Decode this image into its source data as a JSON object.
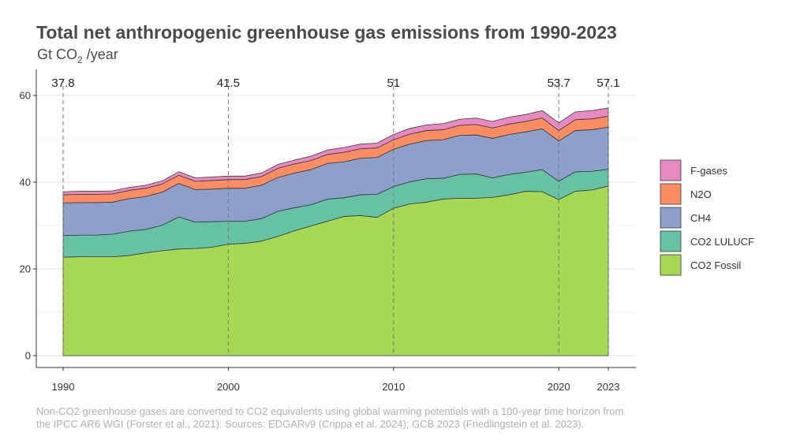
{
  "chart_data": {
    "type": "area",
    "stacked": true,
    "title": "Total net anthropogenic greenhouse gas emissions from 1990-2023",
    "subtitle_prefix": "Gt CO",
    "subtitle_sub": "2",
    "subtitle_suffix": " /year",
    "ylim": [
      0,
      65
    ],
    "xlim": [
      1990,
      2023
    ],
    "y_ticks": [
      0,
      20,
      40,
      60
    ],
    "x_ticks": [
      1990,
      2000,
      2010,
      2020,
      2023
    ],
    "grid": true,
    "legend_position": "right",
    "x": [
      1990,
      1991,
      1992,
      1993,
      1994,
      1995,
      1996,
      1997,
      1998,
      1999,
      2000,
      2001,
      2002,
      2003,
      2004,
      2005,
      2006,
      2007,
      2008,
      2009,
      2010,
      2011,
      2012,
      2013,
      2014,
      2015,
      2016,
      2017,
      2018,
      2019,
      2020,
      2021,
      2022,
      2023
    ],
    "series": [
      {
        "name": "CO2 Fossil",
        "color": "#a6d854",
        "values": [
          22.7,
          22.8,
          22.8,
          22.8,
          23.1,
          23.7,
          24.2,
          24.6,
          24.7,
          25.0,
          25.7,
          25.9,
          26.4,
          27.5,
          28.8,
          29.9,
          31.0,
          32.1,
          32.3,
          31.9,
          34.0,
          35.0,
          35.4,
          36.1,
          36.3,
          36.3,
          36.5,
          37.1,
          37.9,
          37.8,
          36.0,
          37.9,
          38.2,
          39.1
        ]
      },
      {
        "name": "CO2 LULUCF",
        "color": "#66c2a5",
        "values": [
          5.0,
          5.0,
          5.0,
          5.2,
          5.6,
          5.4,
          5.9,
          7.4,
          6.1,
          5.9,
          5.3,
          5.1,
          5.2,
          5.8,
          5.3,
          4.9,
          5.1,
          4.3,
          4.8,
          5.3,
          5.0,
          5.1,
          5.4,
          4.8,
          5.5,
          5.6,
          4.5,
          4.7,
          4.4,
          5.1,
          4.2,
          4.5,
          4.3,
          3.9
        ]
      },
      {
        "name": "CH4",
        "color": "#8da0cb",
        "values": [
          7.5,
          7.5,
          7.5,
          7.4,
          7.5,
          7.6,
          7.6,
          7.7,
          7.5,
          7.5,
          7.6,
          7.6,
          7.7,
          7.8,
          8.0,
          8.1,
          8.2,
          8.3,
          8.4,
          8.5,
          8.6,
          8.7,
          8.8,
          8.9,
          9.0,
          9.0,
          9.1,
          9.2,
          9.3,
          9.4,
          9.3,
          9.5,
          9.6,
          9.7
        ]
      },
      {
        "name": "N2O",
        "color": "#fc8d62",
        "values": [
          1.9,
          1.9,
          1.9,
          1.9,
          1.9,
          1.9,
          1.9,
          1.9,
          1.9,
          2.0,
          2.0,
          2.0,
          2.0,
          2.1,
          2.1,
          2.1,
          2.1,
          2.2,
          2.2,
          2.2,
          2.2,
          2.3,
          2.3,
          2.3,
          2.3,
          2.4,
          2.4,
          2.4,
          2.4,
          2.5,
          2.4,
          2.5,
          2.5,
          2.5
        ]
      },
      {
        "name": "F-gases",
        "color": "#e78ac3",
        "values": [
          0.7,
          0.7,
          0.7,
          0.7,
          0.7,
          0.7,
          0.7,
          0.8,
          0.8,
          0.8,
          0.8,
          0.8,
          0.8,
          0.9,
          0.9,
          1.0,
          1.0,
          1.1,
          1.1,
          1.1,
          1.2,
          1.3,
          1.3,
          1.4,
          1.4,
          1.5,
          1.5,
          1.6,
          1.6,
          1.7,
          1.8,
          1.8,
          1.9,
          1.9
        ]
      }
    ],
    "annotations": [
      {
        "year": 1990,
        "label": "37.8"
      },
      {
        "year": 2000,
        "label": "41.5"
      },
      {
        "year": 2010,
        "label": "51"
      },
      {
        "year": 2020,
        "label": "53.7"
      },
      {
        "year": 2023,
        "label": "57.1"
      }
    ],
    "legend_order": [
      "F-gases",
      "N2O",
      "CH4",
      "CO2 LULUCF",
      "CO2 Fossil"
    ]
  },
  "caption": {
    "line1": "Non-CO2 greenhouse gases are converted to CO2 equivalents using global warming potentials with a 100-year time horizon from",
    "line2": "the IPCC AR6 WGI (Forster et al., 2021). Sources: EDGARv9 (Crippa et al. 2024); GCB 2023 (Friedlingstein et al. 2023)."
  }
}
